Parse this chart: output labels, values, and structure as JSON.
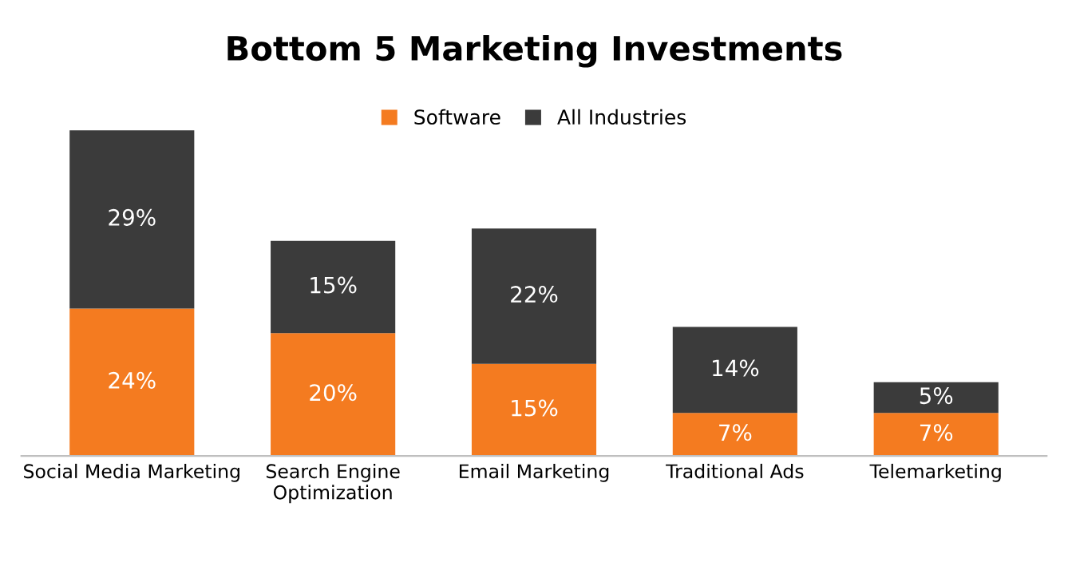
{
  "chart_data": {
    "type": "bar",
    "title": "Bottom 5 Marketing Investments",
    "stacked": true,
    "legend": "top",
    "categories": [
      "Social Media Marketing",
      "Search Engine\nOptimization",
      "Email Marketing",
      "Traditional Ads",
      "Telemarketing"
    ],
    "series": [
      {
        "name": "Software",
        "color": "#f47b20",
        "values": [
          24,
          20,
          15,
          7,
          7
        ],
        "value_labels": [
          "24%",
          "20%",
          "15%",
          "7%",
          "7%"
        ]
      },
      {
        "name": "All Industries",
        "color": "#3b3b3b",
        "values": [
          29,
          15,
          22,
          14,
          5
        ],
        "value_labels": [
          "29%",
          "15%",
          "22%",
          "14%",
          "5%"
        ]
      }
    ]
  }
}
